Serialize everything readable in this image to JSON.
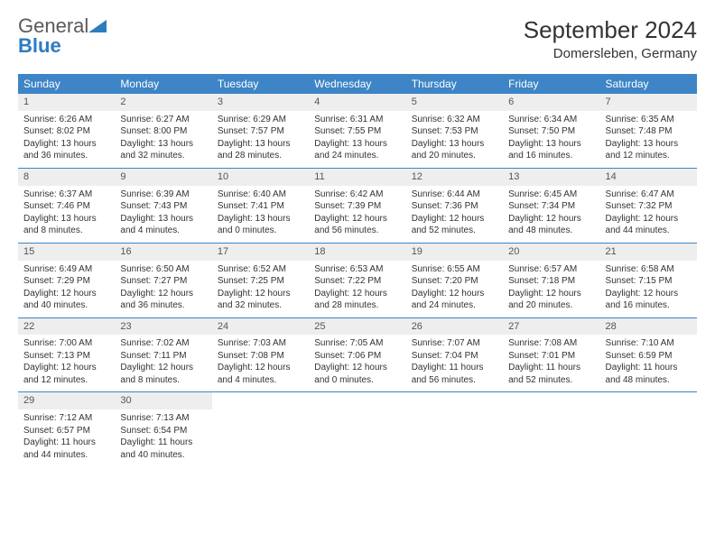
{
  "logo": {
    "word1": "General",
    "word2": "Blue"
  },
  "title": "September 2024",
  "location": "Domersleben, Germany",
  "colors": {
    "header_bg": "#3d85c6",
    "header_text": "#ffffff",
    "daynum_bg": "#eeeeee",
    "divider": "#3d85c6",
    "logo_gray": "#5a5a5a",
    "logo_blue": "#2d7cc0"
  },
  "fonts": {
    "title_size": 26,
    "location_size": 15,
    "dayheader_size": 12,
    "body_size": 10
  },
  "day_names": [
    "Sunday",
    "Monday",
    "Tuesday",
    "Wednesday",
    "Thursday",
    "Friday",
    "Saturday"
  ],
  "weeks": [
    [
      {
        "n": "1",
        "sunrise": "Sunrise: 6:26 AM",
        "sunset": "Sunset: 8:02 PM",
        "daylight": "Daylight: 13 hours and 36 minutes."
      },
      {
        "n": "2",
        "sunrise": "Sunrise: 6:27 AM",
        "sunset": "Sunset: 8:00 PM",
        "daylight": "Daylight: 13 hours and 32 minutes."
      },
      {
        "n": "3",
        "sunrise": "Sunrise: 6:29 AM",
        "sunset": "Sunset: 7:57 PM",
        "daylight": "Daylight: 13 hours and 28 minutes."
      },
      {
        "n": "4",
        "sunrise": "Sunrise: 6:31 AM",
        "sunset": "Sunset: 7:55 PM",
        "daylight": "Daylight: 13 hours and 24 minutes."
      },
      {
        "n": "5",
        "sunrise": "Sunrise: 6:32 AM",
        "sunset": "Sunset: 7:53 PM",
        "daylight": "Daylight: 13 hours and 20 minutes."
      },
      {
        "n": "6",
        "sunrise": "Sunrise: 6:34 AM",
        "sunset": "Sunset: 7:50 PM",
        "daylight": "Daylight: 13 hours and 16 minutes."
      },
      {
        "n": "7",
        "sunrise": "Sunrise: 6:35 AM",
        "sunset": "Sunset: 7:48 PM",
        "daylight": "Daylight: 13 hours and 12 minutes."
      }
    ],
    [
      {
        "n": "8",
        "sunrise": "Sunrise: 6:37 AM",
        "sunset": "Sunset: 7:46 PM",
        "daylight": "Daylight: 13 hours and 8 minutes."
      },
      {
        "n": "9",
        "sunrise": "Sunrise: 6:39 AM",
        "sunset": "Sunset: 7:43 PM",
        "daylight": "Daylight: 13 hours and 4 minutes."
      },
      {
        "n": "10",
        "sunrise": "Sunrise: 6:40 AM",
        "sunset": "Sunset: 7:41 PM",
        "daylight": "Daylight: 13 hours and 0 minutes."
      },
      {
        "n": "11",
        "sunrise": "Sunrise: 6:42 AM",
        "sunset": "Sunset: 7:39 PM",
        "daylight": "Daylight: 12 hours and 56 minutes."
      },
      {
        "n": "12",
        "sunrise": "Sunrise: 6:44 AM",
        "sunset": "Sunset: 7:36 PM",
        "daylight": "Daylight: 12 hours and 52 minutes."
      },
      {
        "n": "13",
        "sunrise": "Sunrise: 6:45 AM",
        "sunset": "Sunset: 7:34 PM",
        "daylight": "Daylight: 12 hours and 48 minutes."
      },
      {
        "n": "14",
        "sunrise": "Sunrise: 6:47 AM",
        "sunset": "Sunset: 7:32 PM",
        "daylight": "Daylight: 12 hours and 44 minutes."
      }
    ],
    [
      {
        "n": "15",
        "sunrise": "Sunrise: 6:49 AM",
        "sunset": "Sunset: 7:29 PM",
        "daylight": "Daylight: 12 hours and 40 minutes."
      },
      {
        "n": "16",
        "sunrise": "Sunrise: 6:50 AM",
        "sunset": "Sunset: 7:27 PM",
        "daylight": "Daylight: 12 hours and 36 minutes."
      },
      {
        "n": "17",
        "sunrise": "Sunrise: 6:52 AM",
        "sunset": "Sunset: 7:25 PM",
        "daylight": "Daylight: 12 hours and 32 minutes."
      },
      {
        "n": "18",
        "sunrise": "Sunrise: 6:53 AM",
        "sunset": "Sunset: 7:22 PM",
        "daylight": "Daylight: 12 hours and 28 minutes."
      },
      {
        "n": "19",
        "sunrise": "Sunrise: 6:55 AM",
        "sunset": "Sunset: 7:20 PM",
        "daylight": "Daylight: 12 hours and 24 minutes."
      },
      {
        "n": "20",
        "sunrise": "Sunrise: 6:57 AM",
        "sunset": "Sunset: 7:18 PM",
        "daylight": "Daylight: 12 hours and 20 minutes."
      },
      {
        "n": "21",
        "sunrise": "Sunrise: 6:58 AM",
        "sunset": "Sunset: 7:15 PM",
        "daylight": "Daylight: 12 hours and 16 minutes."
      }
    ],
    [
      {
        "n": "22",
        "sunrise": "Sunrise: 7:00 AM",
        "sunset": "Sunset: 7:13 PM",
        "daylight": "Daylight: 12 hours and 12 minutes."
      },
      {
        "n": "23",
        "sunrise": "Sunrise: 7:02 AM",
        "sunset": "Sunset: 7:11 PM",
        "daylight": "Daylight: 12 hours and 8 minutes."
      },
      {
        "n": "24",
        "sunrise": "Sunrise: 7:03 AM",
        "sunset": "Sunset: 7:08 PM",
        "daylight": "Daylight: 12 hours and 4 minutes."
      },
      {
        "n": "25",
        "sunrise": "Sunrise: 7:05 AM",
        "sunset": "Sunset: 7:06 PM",
        "daylight": "Daylight: 12 hours and 0 minutes."
      },
      {
        "n": "26",
        "sunrise": "Sunrise: 7:07 AM",
        "sunset": "Sunset: 7:04 PM",
        "daylight": "Daylight: 11 hours and 56 minutes."
      },
      {
        "n": "27",
        "sunrise": "Sunrise: 7:08 AM",
        "sunset": "Sunset: 7:01 PM",
        "daylight": "Daylight: 11 hours and 52 minutes."
      },
      {
        "n": "28",
        "sunrise": "Sunrise: 7:10 AM",
        "sunset": "Sunset: 6:59 PM",
        "daylight": "Daylight: 11 hours and 48 minutes."
      }
    ],
    [
      {
        "n": "29",
        "sunrise": "Sunrise: 7:12 AM",
        "sunset": "Sunset: 6:57 PM",
        "daylight": "Daylight: 11 hours and 44 minutes."
      },
      {
        "n": "30",
        "sunrise": "Sunrise: 7:13 AM",
        "sunset": "Sunset: 6:54 PM",
        "daylight": "Daylight: 11 hours and 40 minutes."
      },
      null,
      null,
      null,
      null,
      null
    ]
  ]
}
